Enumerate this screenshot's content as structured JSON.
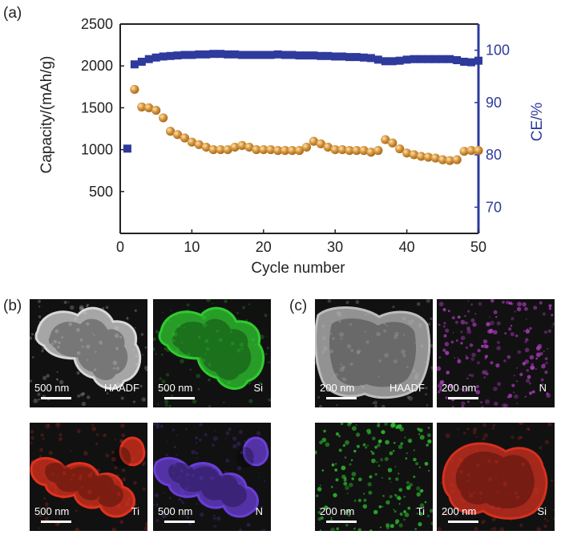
{
  "panels": {
    "a": "(a)",
    "b": "(b)",
    "c": "(c)"
  },
  "chart_data": {
    "type": "scatter",
    "xlabel": "Cycle number",
    "ylabel_left": "Capacity/(mAh/g)",
    "ylabel_right": "CE/%",
    "xlim": [
      0,
      50
    ],
    "ylim_left": [
      0,
      2500
    ],
    "ylim_right": [
      65,
      105
    ],
    "xticks": [
      0,
      10,
      20,
      30,
      40,
      50
    ],
    "yticks_left": [
      500,
      1000,
      1500,
      2000,
      2500
    ],
    "yticks_right": [
      70,
      80,
      90,
      100
    ],
    "grid": false,
    "series": [
      {
        "axis": "left",
        "color": "#d4943a",
        "marker": "sphere",
        "x": [
          2,
          3,
          4,
          5,
          6,
          7,
          8,
          9,
          10,
          11,
          12,
          13,
          14,
          15,
          16,
          17,
          18,
          19,
          20,
          21,
          22,
          23,
          24,
          25,
          26,
          27,
          28,
          29,
          30,
          31,
          32,
          33,
          34,
          35,
          36,
          37,
          38,
          39,
          40,
          41,
          42,
          43,
          44,
          45,
          46,
          47,
          48,
          49,
          50
        ],
        "values": [
          1720,
          1510,
          1500,
          1470,
          1380,
          1220,
          1180,
          1140,
          1090,
          1060,
          1030,
          1000,
          1000,
          1000,
          1030,
          1050,
          1030,
          1000,
          1000,
          1000,
          990,
          990,
          990,
          990,
          1030,
          1100,
          1070,
          1030,
          1000,
          1000,
          990,
          990,
          990,
          970,
          990,
          1120,
          1080,
          1010,
          960,
          940,
          920,
          910,
          900,
          880,
          870,
          880,
          980,
          990,
          990
        ]
      },
      {
        "axis": "right",
        "color": "#2e3a9c",
        "marker": "square",
        "x": [
          1,
          2,
          3,
          4,
          5,
          6,
          7,
          8,
          9,
          10,
          11,
          12,
          13,
          14,
          15,
          16,
          17,
          18,
          19,
          20,
          21,
          22,
          23,
          24,
          25,
          26,
          27,
          28,
          29,
          30,
          31,
          32,
          33,
          34,
          35,
          36,
          37,
          38,
          39,
          40,
          41,
          42,
          43,
          44,
          45,
          46,
          47,
          48,
          49,
          50
        ],
        "values": [
          81.2,
          97.3,
          97.8,
          98.3,
          98.6,
          98.8,
          98.9,
          99.0,
          99.1,
          99.1,
          99.2,
          99.2,
          99.3,
          99.3,
          99.2,
          99.2,
          99.1,
          99.1,
          99.1,
          99.1,
          99.1,
          99.2,
          99.1,
          99.1,
          99.0,
          99.0,
          99.0,
          98.9,
          98.9,
          98.8,
          98.8,
          98.7,
          98.7,
          98.6,
          98.5,
          98.2,
          97.9,
          97.9,
          98.0,
          98.2,
          98.3,
          98.3,
          98.3,
          98.3,
          98.3,
          98.3,
          98.1,
          97.8,
          97.7,
          98.0
        ]
      }
    ]
  },
  "micrographs_b": [
    {
      "scale": "500 nm",
      "element": "HAADF",
      "tone": "#d8d8d8"
    },
    {
      "scale": "500 nm",
      "element": "Si",
      "tone": "#2fcc2f"
    },
    {
      "scale": "500 nm",
      "element": "Ti",
      "tone": "#e0321e"
    },
    {
      "scale": "500 nm",
      "element": "N",
      "tone": "#6a3ed8"
    }
  ],
  "micrographs_c": [
    {
      "scale": "200 nm",
      "element": "HAADF",
      "tone": "#bdbdbd"
    },
    {
      "scale": "200 nm",
      "element": "N",
      "tone": "#b03cc2"
    },
    {
      "scale": "200 nm",
      "element": "Ti",
      "tone": "#2fc42f"
    },
    {
      "scale": "200 nm",
      "element": "Si",
      "tone": "#d5301f"
    }
  ]
}
